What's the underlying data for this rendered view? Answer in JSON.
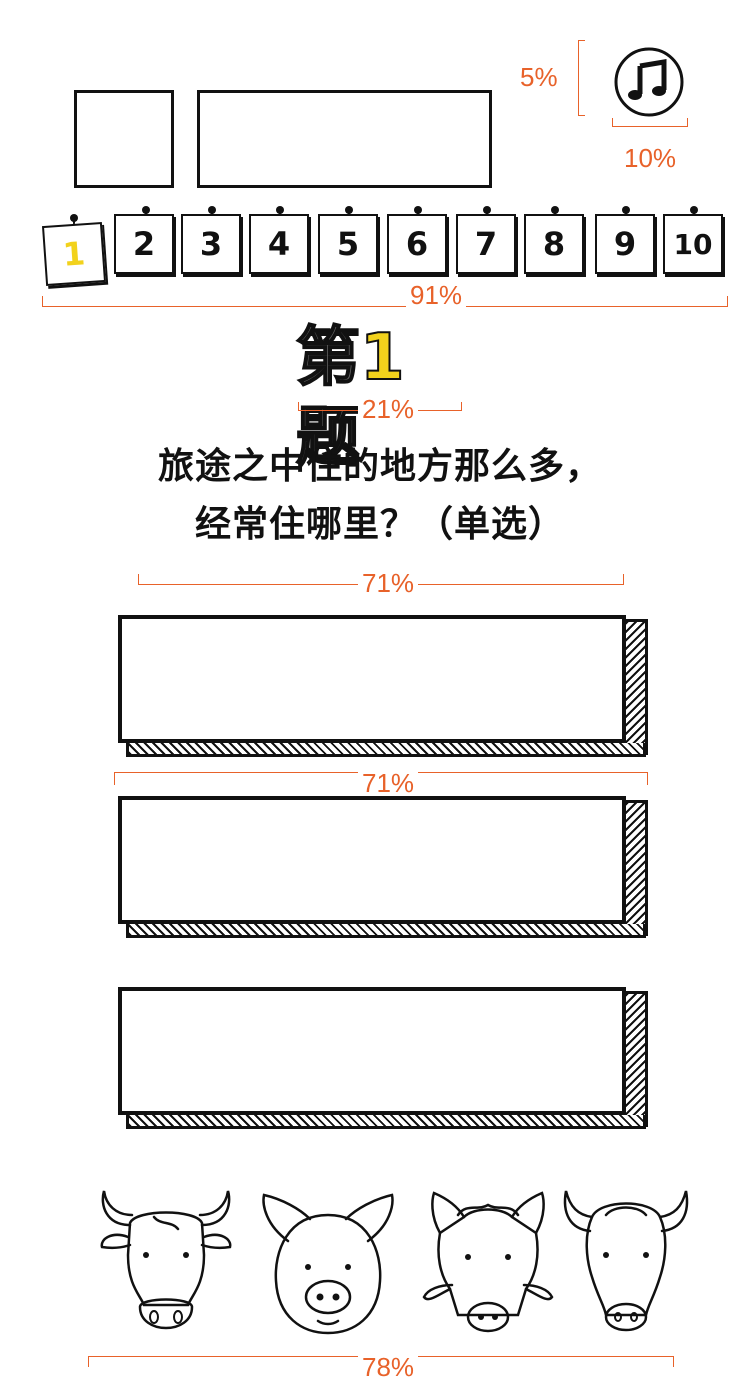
{
  "annotations": {
    "music_top": "5%",
    "music_bottom": "10%",
    "cards": "91%",
    "heading": "21%",
    "question": "71%",
    "option_gap": "71%",
    "animals": "78%"
  },
  "heading": {
    "prefix": "第",
    "number": "1",
    "suffix": "题"
  },
  "question": {
    "line1": "旅途之中住的地方那么多，",
    "line2": "经常住哪里？（单选）"
  },
  "cards": [
    "1",
    "2",
    "3",
    "4",
    "5",
    "6",
    "7",
    "8",
    "9",
    "10"
  ],
  "current_question": "1",
  "music_icon": "music-note-icon",
  "animals": [
    "cow-icon",
    "pig-icon",
    "boar-icon",
    "buffalo-icon"
  ],
  "colors": {
    "annotation": "#e8622a",
    "active": "#f2d21c",
    "ink": "#111111"
  }
}
